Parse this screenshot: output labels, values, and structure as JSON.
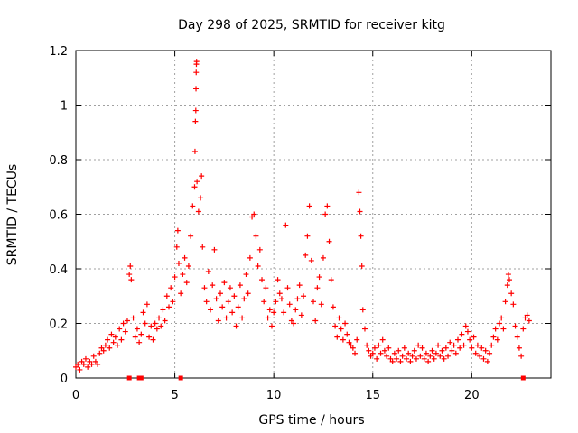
{
  "chart_data": {
    "type": "scatter",
    "title": "Day 298 of 2025, SRMTID for receiver kitg",
    "xlabel": "GPS time / hours",
    "ylabel": "SRMTID / TECUs",
    "xlim": [
      0,
      24
    ],
    "ylim": [
      0,
      1.2
    ],
    "grid": true,
    "marker": "+",
    "color": "#ff0000",
    "xticks": [
      0,
      5,
      10,
      15,
      20
    ],
    "xtick_labels": [
      "0",
      "5",
      "10",
      "15",
      "20"
    ],
    "yticks": [
      0,
      0.2,
      0.4,
      0.6,
      0.8,
      1.0,
      1.2
    ],
    "ytick_labels": [
      "0",
      "0.2",
      "0.4",
      "0.6",
      "0.8",
      "1",
      "1.2"
    ],
    "series": [
      {
        "name": "SRMTID",
        "points": [
          [
            0.0,
            0.04
          ],
          [
            0.1,
            0.05
          ],
          [
            0.2,
            0.03
          ],
          [
            0.3,
            0.06
          ],
          [
            0.4,
            0.05
          ],
          [
            0.5,
            0.07
          ],
          [
            0.6,
            0.04
          ],
          [
            0.7,
            0.06
          ],
          [
            0.8,
            0.05
          ],
          [
            0.9,
            0.08
          ],
          [
            1.0,
            0.06
          ],
          [
            1.1,
            0.05
          ],
          [
            1.2,
            0.09
          ],
          [
            1.3,
            0.11
          ],
          [
            1.4,
            0.1
          ],
          [
            1.5,
            0.12
          ],
          [
            1.6,
            0.14
          ],
          [
            1.7,
            0.11
          ],
          [
            1.8,
            0.16
          ],
          [
            1.9,
            0.13
          ],
          [
            2.0,
            0.15
          ],
          [
            2.1,
            0.12
          ],
          [
            2.2,
            0.18
          ],
          [
            2.3,
            0.14
          ],
          [
            2.4,
            0.2
          ],
          [
            2.5,
            0.17
          ],
          [
            2.6,
            0.21
          ],
          [
            2.7,
            0.38
          ],
          [
            2.75,
            0.41
          ],
          [
            2.8,
            0.36
          ],
          [
            2.9,
            0.22
          ],
          [
            3.0,
            0.15
          ],
          [
            3.1,
            0.18
          ],
          [
            3.2,
            0.13
          ],
          [
            3.3,
            0.16
          ],
          [
            3.4,
            0.24
          ],
          [
            3.5,
            0.2
          ],
          [
            3.6,
            0.27
          ],
          [
            3.7,
            0.15
          ],
          [
            3.8,
            0.19
          ],
          [
            3.9,
            0.14
          ],
          [
            4.0,
            0.2
          ],
          [
            4.1,
            0.18
          ],
          [
            4.2,
            0.22
          ],
          [
            4.3,
            0.19
          ],
          [
            4.4,
            0.25
          ],
          [
            4.5,
            0.21
          ],
          [
            4.6,
            0.3
          ],
          [
            4.7,
            0.26
          ],
          [
            4.8,
            0.33
          ],
          [
            4.9,
            0.28
          ],
          [
            5.0,
            0.37
          ],
          [
            5.1,
            0.48
          ],
          [
            5.15,
            0.54
          ],
          [
            5.2,
            0.42
          ],
          [
            5.3,
            0.31
          ],
          [
            5.4,
            0.38
          ],
          [
            5.5,
            0.44
          ],
          [
            5.6,
            0.35
          ],
          [
            5.7,
            0.41
          ],
          [
            5.8,
            0.52
          ],
          [
            5.9,
            0.63
          ],
          [
            6.0,
            0.7
          ],
          [
            6.02,
            0.83
          ],
          [
            6.04,
            0.94
          ],
          [
            6.06,
            0.98
          ],
          [
            6.07,
            1.06
          ],
          [
            6.08,
            1.12
          ],
          [
            6.09,
            1.15
          ],
          [
            6.1,
            1.16
          ],
          [
            6.12,
            0.72
          ],
          [
            6.2,
            0.61
          ],
          [
            6.3,
            0.66
          ],
          [
            6.35,
            0.74
          ],
          [
            6.4,
            0.48
          ],
          [
            6.5,
            0.33
          ],
          [
            6.6,
            0.28
          ],
          [
            6.7,
            0.39
          ],
          [
            6.8,
            0.25
          ],
          [
            6.9,
            0.34
          ],
          [
            7.0,
            0.47
          ],
          [
            7.1,
            0.29
          ],
          [
            7.2,
            0.21
          ],
          [
            7.3,
            0.31
          ],
          [
            7.4,
            0.26
          ],
          [
            7.5,
            0.35
          ],
          [
            7.6,
            0.22
          ],
          [
            7.7,
            0.28
          ],
          [
            7.8,
            0.33
          ],
          [
            7.9,
            0.24
          ],
          [
            8.0,
            0.3
          ],
          [
            8.1,
            0.19
          ],
          [
            8.2,
            0.26
          ],
          [
            8.3,
            0.34
          ],
          [
            8.4,
            0.22
          ],
          [
            8.5,
            0.29
          ],
          [
            8.6,
            0.38
          ],
          [
            8.7,
            0.31
          ],
          [
            8.8,
            0.44
          ],
          [
            8.9,
            0.59
          ],
          [
            9.0,
            0.6
          ],
          [
            9.1,
            0.52
          ],
          [
            9.2,
            0.41
          ],
          [
            9.3,
            0.47
          ],
          [
            9.4,
            0.36
          ],
          [
            9.5,
            0.28
          ],
          [
            9.6,
            0.33
          ],
          [
            9.7,
            0.22
          ],
          [
            9.8,
            0.25
          ],
          [
            9.9,
            0.19
          ],
          [
            10.0,
            0.24
          ],
          [
            10.1,
            0.28
          ],
          [
            10.2,
            0.36
          ],
          [
            10.3,
            0.31
          ],
          [
            10.4,
            0.29
          ],
          [
            10.5,
            0.24
          ],
          [
            10.6,
            0.56
          ],
          [
            10.7,
            0.33
          ],
          [
            10.8,
            0.27
          ],
          [
            10.9,
            0.21
          ],
          [
            11.0,
            0.2
          ],
          [
            11.1,
            0.25
          ],
          [
            11.2,
            0.29
          ],
          [
            11.3,
            0.34
          ],
          [
            11.4,
            0.23
          ],
          [
            11.5,
            0.3
          ],
          [
            11.6,
            0.45
          ],
          [
            11.7,
            0.52
          ],
          [
            11.8,
            0.63
          ],
          [
            11.9,
            0.43
          ],
          [
            12.0,
            0.28
          ],
          [
            12.1,
            0.21
          ],
          [
            12.2,
            0.33
          ],
          [
            12.3,
            0.37
          ],
          [
            12.4,
            0.27
          ],
          [
            12.5,
            0.44
          ],
          [
            12.6,
            0.6
          ],
          [
            12.7,
            0.63
          ],
          [
            12.8,
            0.5
          ],
          [
            12.9,
            0.36
          ],
          [
            13.0,
            0.26
          ],
          [
            13.1,
            0.19
          ],
          [
            13.2,
            0.15
          ],
          [
            13.3,
            0.22
          ],
          [
            13.4,
            0.18
          ],
          [
            13.5,
            0.14
          ],
          [
            13.6,
            0.2
          ],
          [
            13.7,
            0.16
          ],
          [
            13.8,
            0.13
          ],
          [
            13.9,
            0.12
          ],
          [
            14.0,
            0.11
          ],
          [
            14.1,
            0.09
          ],
          [
            14.2,
            0.14
          ],
          [
            14.3,
            0.68
          ],
          [
            14.35,
            0.61
          ],
          [
            14.4,
            0.52
          ],
          [
            14.45,
            0.41
          ],
          [
            14.5,
            0.25
          ],
          [
            14.6,
            0.18
          ],
          [
            14.7,
            0.12
          ],
          [
            14.8,
            0.1
          ],
          [
            14.9,
            0.08
          ],
          [
            15.0,
            0.09
          ],
          [
            15.1,
            0.11
          ],
          [
            15.2,
            0.07
          ],
          [
            15.3,
            0.12
          ],
          [
            15.4,
            0.09
          ],
          [
            15.5,
            0.14
          ],
          [
            15.6,
            0.1
          ],
          [
            15.7,
            0.08
          ],
          [
            15.8,
            0.11
          ],
          [
            15.9,
            0.07
          ],
          [
            16.0,
            0.06
          ],
          [
            16.1,
            0.09
          ],
          [
            16.2,
            0.07
          ],
          [
            16.3,
            0.1
          ],
          [
            16.4,
            0.06
          ],
          [
            16.5,
            0.08
          ],
          [
            16.6,
            0.11
          ],
          [
            16.7,
            0.07
          ],
          [
            16.8,
            0.09
          ],
          [
            16.9,
            0.06
          ],
          [
            17.0,
            0.08
          ],
          [
            17.1,
            0.1
          ],
          [
            17.2,
            0.07
          ],
          [
            17.3,
            0.12
          ],
          [
            17.4,
            0.08
          ],
          [
            17.5,
            0.11
          ],
          [
            17.6,
            0.07
          ],
          [
            17.7,
            0.09
          ],
          [
            17.8,
            0.06
          ],
          [
            17.9,
            0.08
          ],
          [
            18.0,
            0.1
          ],
          [
            18.1,
            0.07
          ],
          [
            18.2,
            0.09
          ],
          [
            18.3,
            0.12
          ],
          [
            18.4,
            0.08
          ],
          [
            18.5,
            0.1
          ],
          [
            18.6,
            0.07
          ],
          [
            18.7,
            0.11
          ],
          [
            18.8,
            0.08
          ],
          [
            18.9,
            0.13
          ],
          [
            19.0,
            0.1
          ],
          [
            19.1,
            0.12
          ],
          [
            19.2,
            0.09
          ],
          [
            19.3,
            0.14
          ],
          [
            19.4,
            0.11
          ],
          [
            19.5,
            0.16
          ],
          [
            19.6,
            0.12
          ],
          [
            19.7,
            0.19
          ],
          [
            19.8,
            0.17
          ],
          [
            19.9,
            0.14
          ],
          [
            20.0,
            0.11
          ],
          [
            20.1,
            0.15
          ],
          [
            20.2,
            0.09
          ],
          [
            20.3,
            0.12
          ],
          [
            20.4,
            0.08
          ],
          [
            20.5,
            0.11
          ],
          [
            20.6,
            0.07
          ],
          [
            20.7,
            0.1
          ],
          [
            20.8,
            0.06
          ],
          [
            20.9,
            0.09
          ],
          [
            21.0,
            0.12
          ],
          [
            21.1,
            0.15
          ],
          [
            21.2,
            0.18
          ],
          [
            21.3,
            0.14
          ],
          [
            21.4,
            0.2
          ],
          [
            21.5,
            0.22
          ],
          [
            21.6,
            0.18
          ],
          [
            21.7,
            0.28
          ],
          [
            21.8,
            0.34
          ],
          [
            21.85,
            0.38
          ],
          [
            21.9,
            0.36
          ],
          [
            22.0,
            0.31
          ],
          [
            22.1,
            0.27
          ],
          [
            22.2,
            0.19
          ],
          [
            22.3,
            0.15
          ],
          [
            22.4,
            0.11
          ],
          [
            22.5,
            0.08
          ],
          [
            22.6,
            0.18
          ],
          [
            22.7,
            0.22
          ],
          [
            22.8,
            0.23
          ],
          [
            22.9,
            0.21
          ],
          [
            2.7,
            0.0
          ],
          [
            3.2,
            0.0
          ],
          [
            3.3,
            0.0
          ],
          [
            5.3,
            0.0
          ],
          [
            22.6,
            0.0
          ]
        ]
      }
    ]
  }
}
